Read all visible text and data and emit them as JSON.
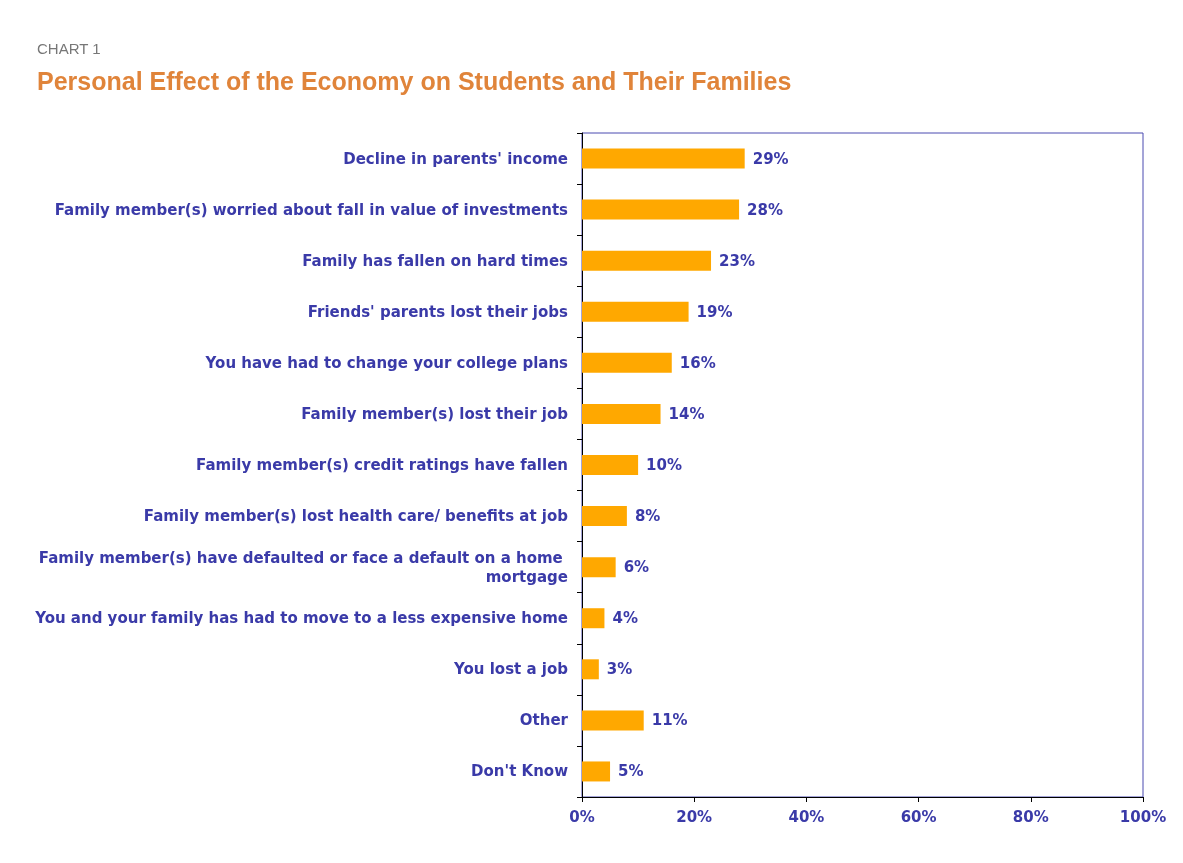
{
  "chart_data": {
    "type": "bar",
    "orientation": "horizontal",
    "subtitle": "CHART 1",
    "title": "Personal Effect of the Economy on Students and Their Families",
    "categories": [
      "Decline in parents' income",
      "Family member(s) worried about fall in value of investments",
      "Family has fallen on hard times",
      "Friends' parents lost their jobs",
      "You have had to change your college plans",
      "Family member(s) lost their job",
      "Family member(s) credit ratings have fallen",
      "Family member(s) lost health care/ benefits at job",
      "Family member(s) have defaulted or face a default on a home mortgage",
      "You and your family has had to move to a less expensive home",
      "You lost a job",
      "Other",
      "Don't Know"
    ],
    "values": [
      29,
      28,
      23,
      19,
      16,
      14,
      10,
      8,
      6,
      4,
      3,
      11,
      5
    ],
    "value_labels": [
      "29%",
      "28%",
      "23%",
      "19%",
      "16%",
      "14%",
      "10%",
      "8%",
      "6%",
      "4%",
      "3%",
      "11%",
      "5%"
    ],
    "color": "#ffa800",
    "xlim": [
      0,
      100
    ],
    "xticks": [
      {
        "value": 0,
        "label": "0%"
      },
      {
        "value": 20,
        "label": "20%"
      },
      {
        "value": 40,
        "label": "40%"
      },
      {
        "value": 60,
        "label": "60%"
      },
      {
        "value": 80,
        "label": "80%"
      },
      {
        "value": 100,
        "label": "100%"
      }
    ]
  }
}
